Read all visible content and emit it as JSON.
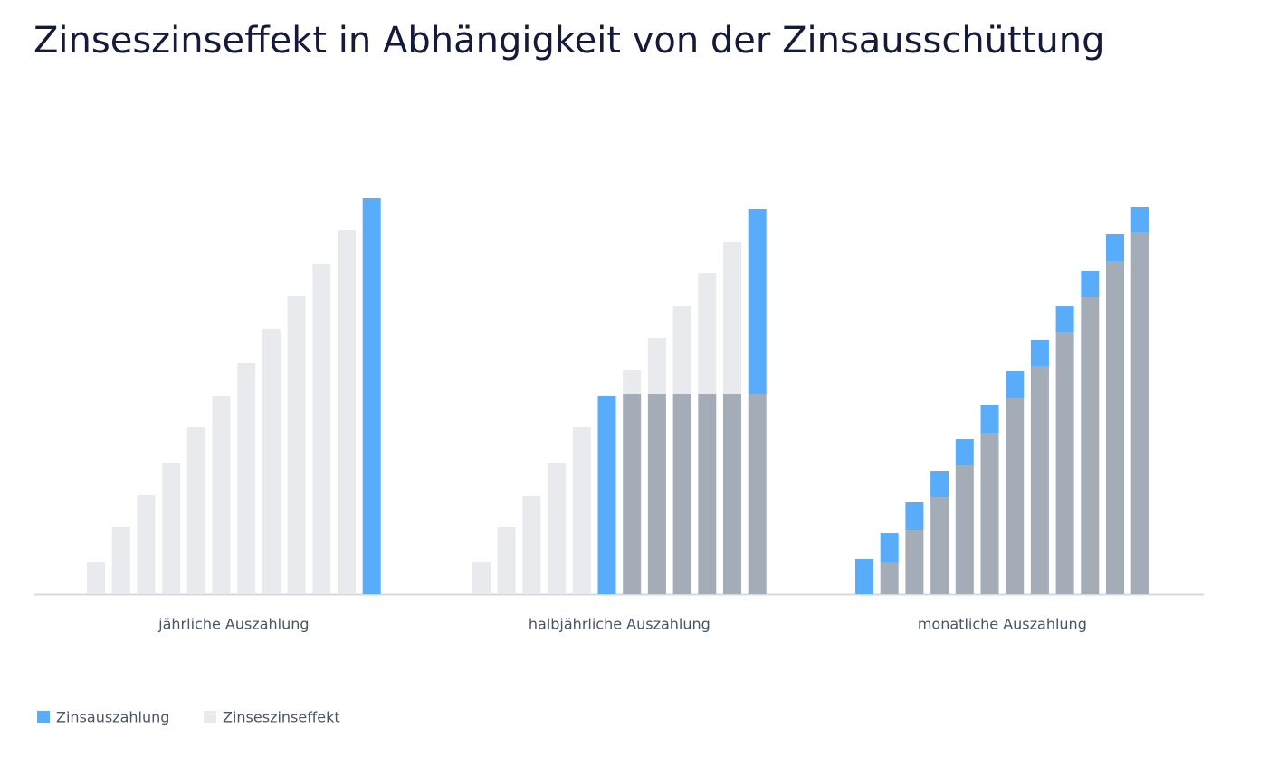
{
  "chart_data": {
    "type": "bar",
    "stacked": true,
    "title": "Zinseszinseffekt in Abhängigkeit von der Zinsausschüttung",
    "groups": [
      "jährliche Auszahlung",
      "halbjährliche Auszahlung",
      "monatliche Auszahlung"
    ],
    "series": [
      {
        "color": "#a3acb7",
        "values": [
          null,
          null,
          null,
          null,
          null,
          null,
          null,
          null,
          null,
          null,
          null,
          null,
          null,
          null,
          null,
          null,
          null,
          null,
          221,
          221,
          221,
          221,
          221,
          221,
          null,
          36,
          71,
          107,
          143,
          178,
          217,
          252,
          290,
          329,
          368,
          400
        ]
      },
      {
        "name": "Zinsauszahlung",
        "color": "#58acfa",
        "values": [
          null,
          null,
          null,
          null,
          null,
          null,
          null,
          null,
          null,
          null,
          null,
          438,
          null,
          null,
          null,
          null,
          null,
          219,
          null,
          null,
          null,
          null,
          null,
          205,
          39,
          32,
          31,
          29,
          29,
          31,
          30,
          29,
          29,
          28,
          30,
          28
        ]
      },
      {
        "name": "Zinseszinseffekt",
        "color": "#e8eaed",
        "values": [
          36,
          74,
          110,
          145,
          185,
          219,
          256,
          293,
          330,
          365,
          403,
          null,
          36,
          74,
          109,
          145,
          185,
          null,
          27,
          62,
          98,
          134,
          168,
          null,
          null,
          null,
          null,
          null,
          null,
          null,
          null,
          null,
          null,
          null,
          null,
          null
        ]
      }
    ]
  }
}
